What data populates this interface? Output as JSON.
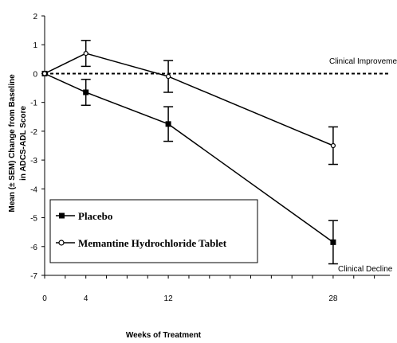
{
  "chart_data": {
    "type": "line",
    "x": [
      0,
      4,
      12,
      28
    ],
    "x_ticks": [
      "0",
      "4",
      "12",
      "28"
    ],
    "y_ticks": [
      "2",
      "1",
      "0",
      "-1",
      "-2",
      "-3",
      "-4",
      "-5",
      "-6",
      "-7"
    ],
    "ylim": [
      -7,
      2
    ],
    "xlabel": "Weeks of Treatment",
    "ylabel_line1": "Mean (± SEM) Change from Baseline",
    "ylabel_line2": "in ADCS-ADL Score",
    "reference_line": {
      "y": 0,
      "style": "dashed"
    },
    "annotations": [
      {
        "text": "Clinical Improvement"
      },
      {
        "text": "Clinical Decline"
      }
    ],
    "series": [
      {
        "name": "Placebo",
        "marker": "square",
        "values": [
          0,
          -0.65,
          -1.75,
          -5.85
        ],
        "error": [
          0,
          0.45,
          0.6,
          0.75
        ]
      },
      {
        "name": "Memantine Hydrochloride Tablet",
        "marker": "circle",
        "values": [
          0,
          0.7,
          -0.1,
          -2.5
        ],
        "error": [
          0,
          0.45,
          0.55,
          0.65
        ]
      }
    ],
    "grid": false,
    "legend_position": "bottom-left"
  }
}
